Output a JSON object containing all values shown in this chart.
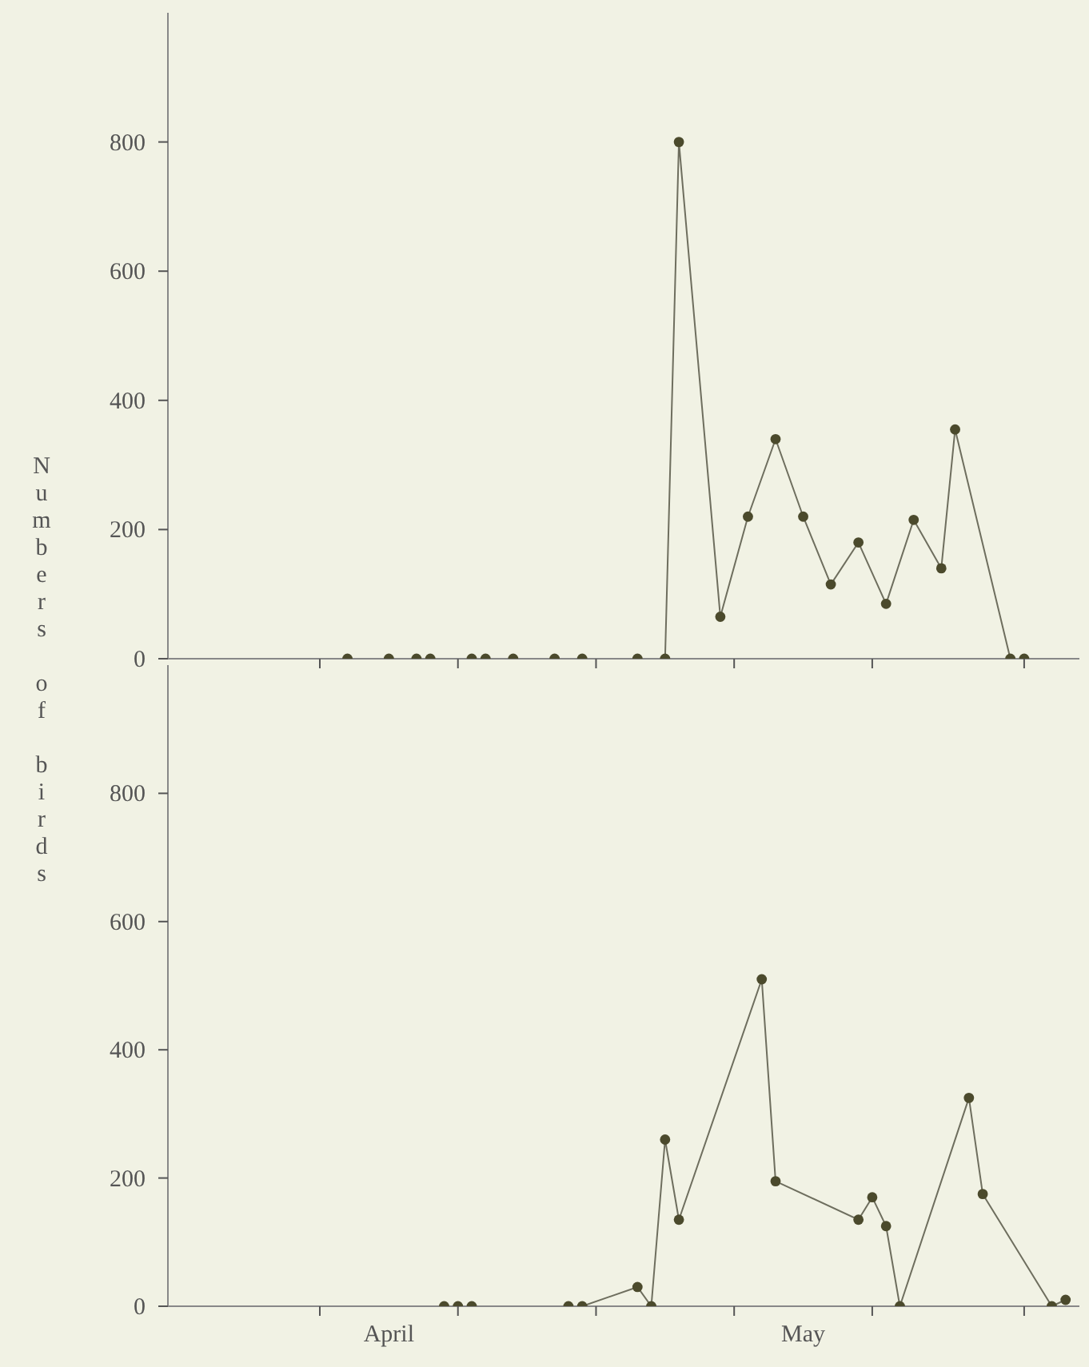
{
  "chart_data": [
    {
      "type": "line",
      "ylabel": "Numbers of birds",
      "marker": "circle",
      "tick_labels": "y",
      "xlim": [
        "--03-31",
        "--06-05"
      ],
      "ylim": [
        0,
        1000
      ],
      "yticks": [
        0,
        200,
        400,
        600,
        800
      ],
      "xticks": [
        {
          "value": "--04-11",
          "label": null
        },
        {
          "value": "--04-16",
          "label": "April"
        },
        {
          "value": "--04-21",
          "label": null
        },
        {
          "value": "--05-01",
          "label": null
        },
        {
          "value": "--05-11",
          "label": null
        },
        {
          "value": "--05-16",
          "label": "May"
        },
        {
          "value": "--05-21",
          "label": null
        },
        {
          "value": "--06-01",
          "label": null
        }
      ],
      "series": [
        {
          "color": "#4b4a2c",
          "x": [
            "--04-13",
            "--04-16",
            "--04-18",
            "--04-19",
            "--04-22",
            "--04-23",
            "--04-25",
            "--04-28",
            "--04-30",
            "--05-04",
            "--05-06",
            "--05-07",
            "--05-10",
            "--05-12",
            "--05-14",
            "--05-16",
            "--05-18",
            "--05-20",
            "--05-22",
            "--05-24",
            "--05-26",
            "--05-27",
            "--05-31",
            "--06-01"
          ],
          "values": [
            0,
            0,
            0,
            0,
            0,
            0,
            0,
            0,
            0,
            0,
            0,
            800,
            65,
            220,
            340,
            220,
            115,
            180,
            85,
            215,
            140,
            355,
            0,
            0
          ]
        }
      ]
    },
    {
      "type": "line",
      "marker": "circle",
      "xlim": [
        "--03-31",
        "--06-05"
      ],
      "ylim": [
        0,
        1000
      ],
      "yticks": [
        0,
        200,
        400,
        600,
        800
      ],
      "xticks": [
        {
          "value": "--04-11",
          "label": null
        },
        {
          "value": "--04-16",
          "label": "April"
        },
        {
          "value": "--04-21",
          "label": null
        },
        {
          "value": "--05-01",
          "label": null
        },
        {
          "value": "--05-11",
          "label": null
        },
        {
          "value": "--05-16",
          "label": "May"
        },
        {
          "value": "--05-21",
          "label": null
        },
        {
          "value": "--06-01",
          "label": null
        }
      ],
      "series": [
        {
          "color": "#4b4a2c",
          "x": [
            "--04-20",
            "--04-21",
            "--04-22",
            "--04-29",
            "--04-30",
            "--05-04",
            "--05-05",
            "--05-06",
            "--05-07",
            "--05-13",
            "--05-14",
            "--05-20",
            "--05-21",
            "--05-22",
            "--05-23",
            "--05-28",
            "--05-29",
            "--06-03",
            "--06-04"
          ],
          "values": [
            0,
            0,
            0,
            0,
            0,
            30,
            0,
            260,
            135,
            510,
            195,
            135,
            170,
            125,
            0,
            325,
            175,
            0,
            10
          ]
        }
      ]
    }
  ]
}
